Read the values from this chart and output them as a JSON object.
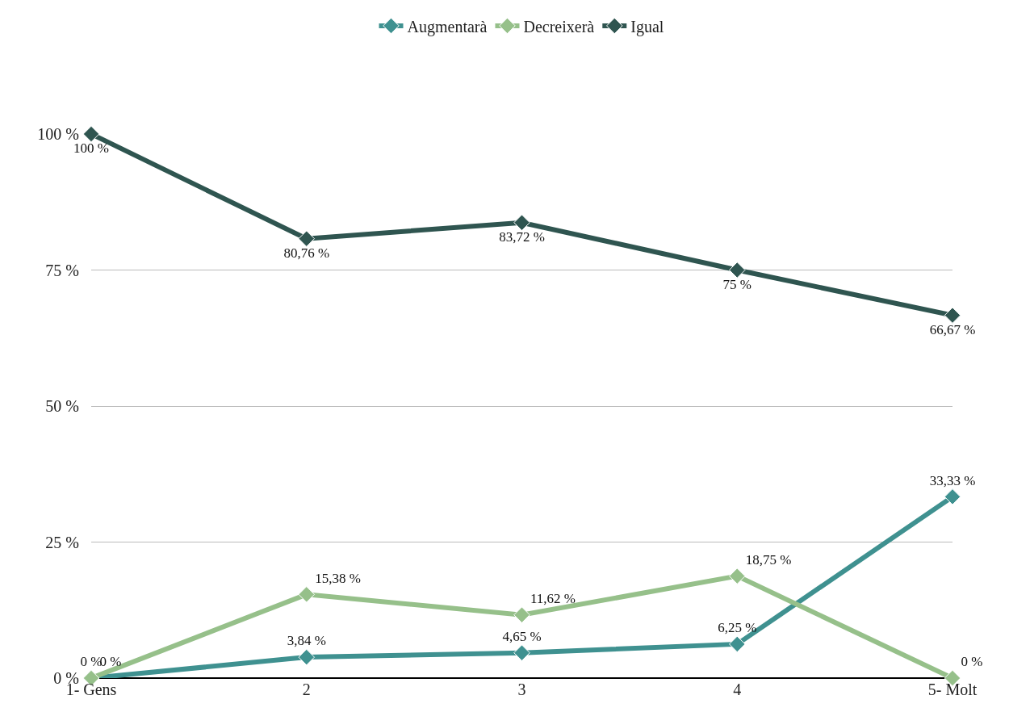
{
  "chart_data": {
    "type": "line",
    "categories": [
      "1- Gens",
      "2",
      "3",
      "4",
      "5- Molt"
    ],
    "series": [
      {
        "name": "Augmentarà",
        "color": "#3f9190",
        "values": [
          0,
          3.84,
          4.65,
          6.25,
          33.33
        ],
        "value_labels": [
          "0 %",
          "3,84 %",
          "4,65 %",
          "6,25 %",
          "33,33 %"
        ]
      },
      {
        "name": "Decreixerà",
        "color": "#96c08a",
        "values": [
          0,
          15.38,
          11.62,
          18.75,
          0
        ],
        "value_labels": [
          "0 %",
          "15,38 %",
          "11,62 %",
          "18,75 %",
          "0 %"
        ]
      },
      {
        "name": "Igual",
        "color": "#2f5550",
        "values": [
          100,
          80.76,
          83.72,
          75,
          66.67
        ],
        "value_labels": [
          "100 %",
          "80,76 %",
          "83,72 %",
          "75 %",
          "66,67 %"
        ]
      }
    ],
    "ylim": [
      0,
      100
    ],
    "yticks": [
      {
        "value": 0,
        "label": "0 %"
      },
      {
        "value": 25,
        "label": "25 %"
      },
      {
        "value": 50,
        "label": "50 %"
      },
      {
        "value": 75,
        "label": "75 %"
      },
      {
        "value": 100,
        "label": "100 %"
      }
    ],
    "grid": "y",
    "legend": "top",
    "marker": "diamond",
    "line_style": "solid"
  }
}
